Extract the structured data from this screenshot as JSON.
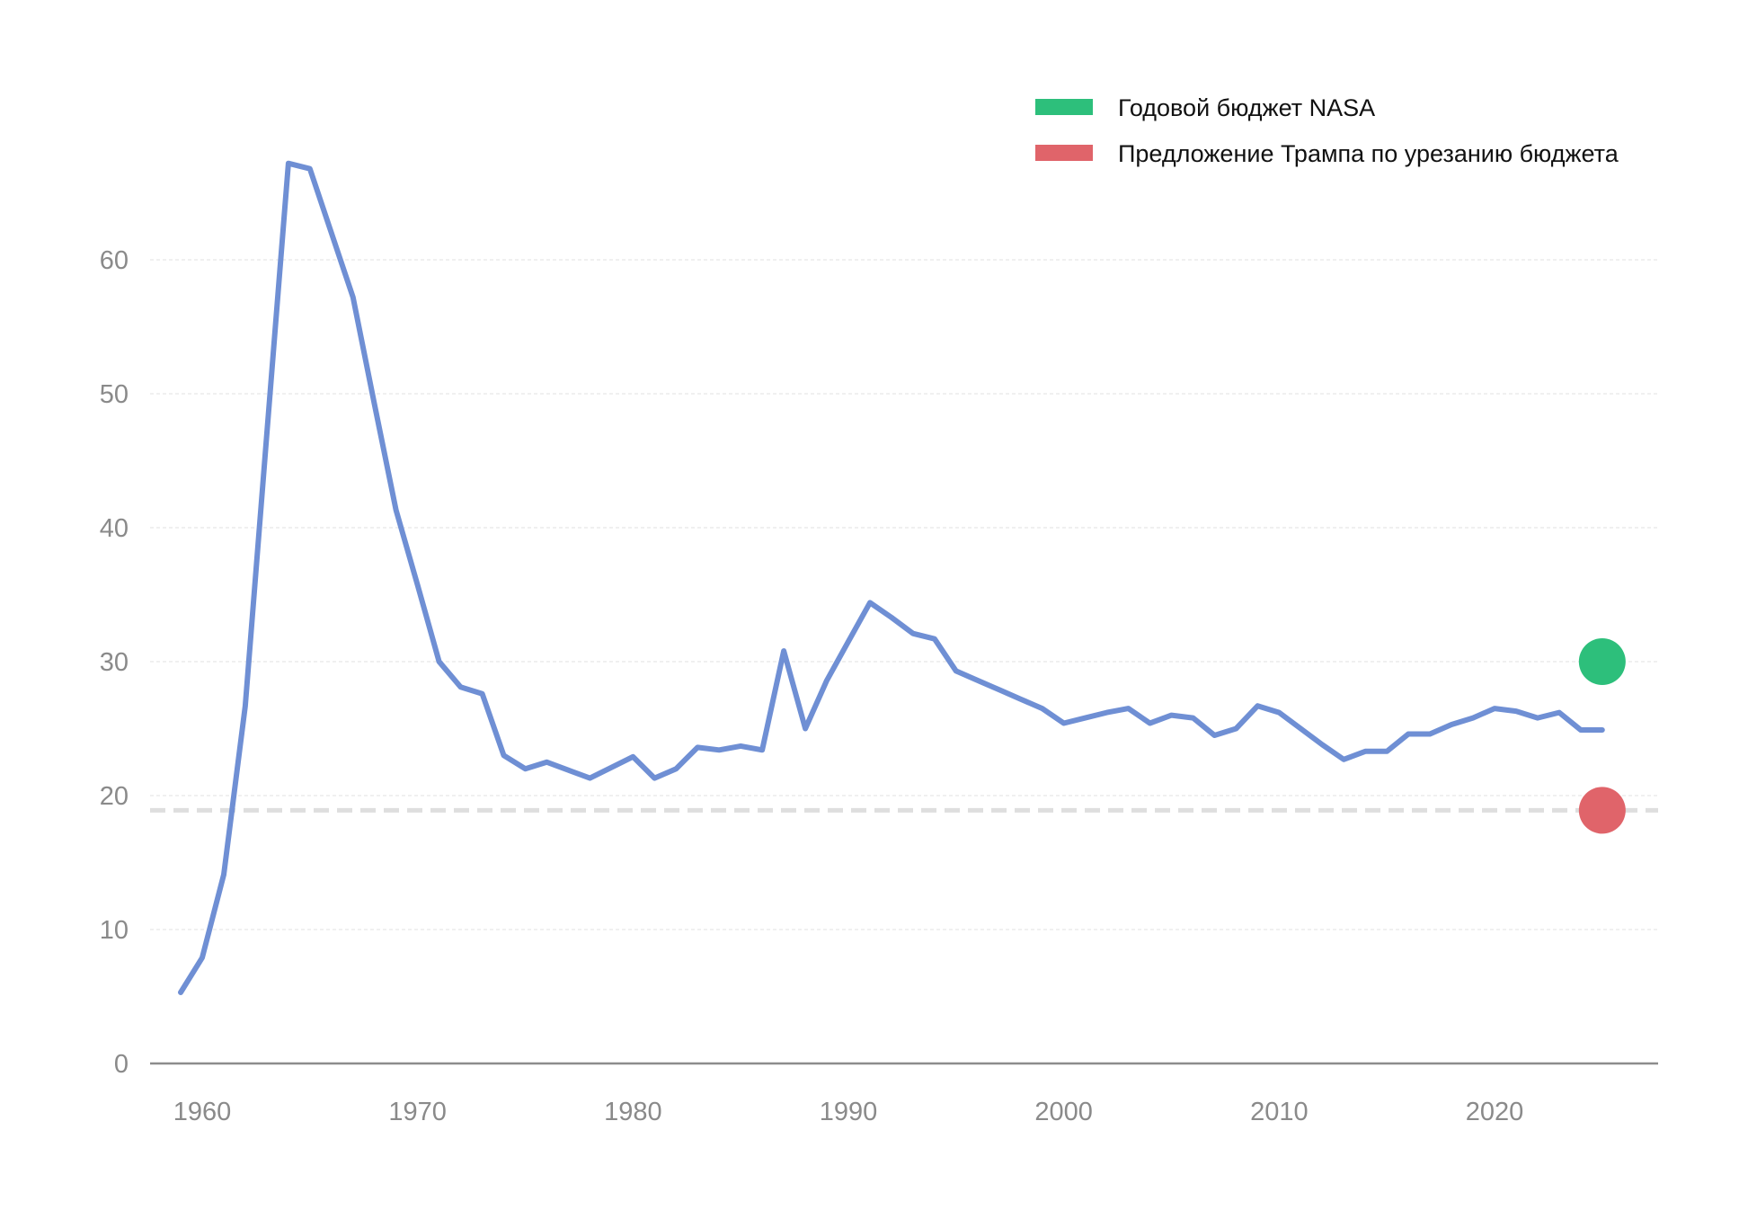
{
  "chart_data": {
    "type": "line",
    "title": "",
    "xlabel": "",
    "ylabel": "",
    "xlim": [
      1958,
      2027
    ],
    "ylim": [
      0,
      70
    ],
    "x_ticks": [
      1960,
      1970,
      1980,
      1990,
      2000,
      2010,
      2020
    ],
    "y_ticks": [
      0,
      10,
      20,
      30,
      40,
      50,
      60
    ],
    "grid": "horizontal",
    "legend_position": "top-right",
    "legend": [
      {
        "label": "Годовой бюджет NASA",
        "color": "#2dbf7b"
      },
      {
        "label": "Предложение Трампа по урезанию бюджета",
        "color": "#e0646a"
      }
    ],
    "series": [
      {
        "color": "#6f8fd4",
        "x": [
          1959,
          1960,
          1961,
          1962,
          1963,
          1964,
          1965,
          1966,
          1967,
          1968,
          1969,
          1970,
          1971,
          1972,
          1973,
          1974,
          1975,
          1976,
          1977,
          1978,
          1979,
          1980,
          1981,
          1982,
          1983,
          1984,
          1985,
          1986,
          1987,
          1988,
          1989,
          1990,
          1991,
          1992,
          1993,
          1994,
          1995,
          1996,
          1997,
          1998,
          1999,
          2000,
          2001,
          2002,
          2003,
          2004,
          2005,
          2006,
          2007,
          2008,
          2009,
          2010,
          2011,
          2012,
          2013,
          2014,
          2015,
          2016,
          2017,
          2018,
          2019,
          2020,
          2021,
          2022,
          2023,
          2024,
          2025
        ],
        "values": [
          5.3,
          7.9,
          14.1,
          26.7,
          47.0,
          67.2,
          66.8,
          62.0,
          57.2,
          49.2,
          41.3,
          35.7,
          30.0,
          28.1,
          27.6,
          23.0,
          22.0,
          22.5,
          21.9,
          21.3,
          22.1,
          22.9,
          21.3,
          22.0,
          23.6,
          23.4,
          23.7,
          23.4,
          30.8,
          25.0,
          28.6,
          31.5,
          34.4,
          33.3,
          32.1,
          31.7,
          29.3,
          28.6,
          27.9,
          27.2,
          26.5,
          25.4,
          25.8,
          26.2,
          26.5,
          25.4,
          26.0,
          25.8,
          24.5,
          25.0,
          26.7,
          26.2,
          25.0,
          23.8,
          22.7,
          23.3,
          23.3,
          24.6,
          24.6,
          25.3,
          25.8,
          26.5,
          26.3,
          25.8,
          26.2,
          24.9,
          24.9
        ]
      }
    ],
    "markers": [
      {
        "x": 2025,
        "value": 30.0,
        "color": "#2dbf7b"
      },
      {
        "x": 2025,
        "value": 18.9,
        "color": "#e0646a"
      }
    ],
    "reference_line": {
      "value": 18.9,
      "color": "#dedede",
      "style": "dashed"
    }
  }
}
